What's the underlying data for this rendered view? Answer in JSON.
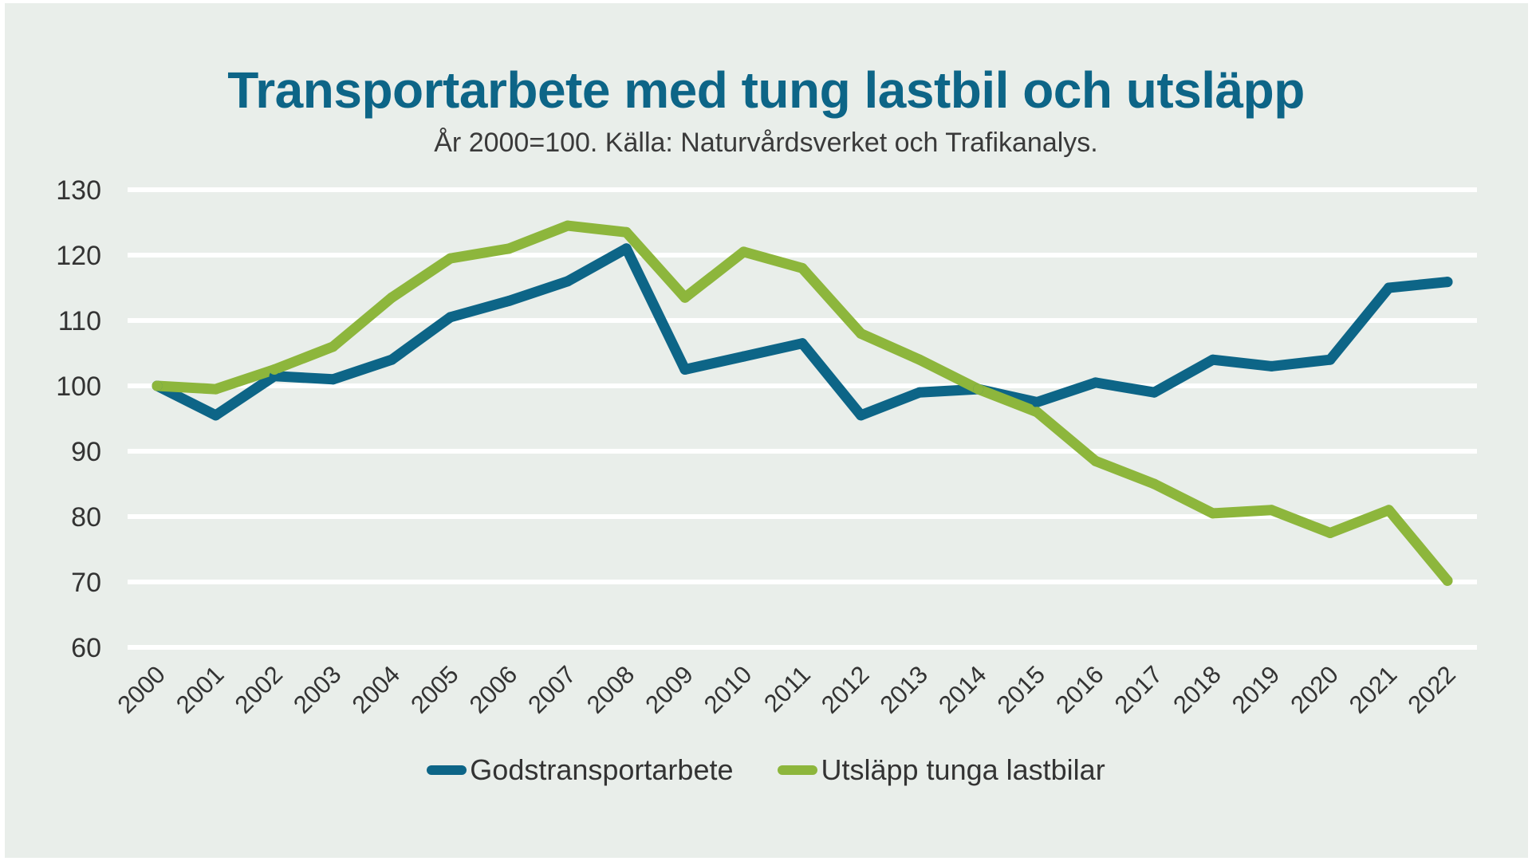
{
  "colors": {
    "godstransport": "#0d6587",
    "utslapp": "#8db63c",
    "grid": "#ffffff",
    "background": "#e9eeea"
  },
  "chart_data": {
    "type": "line",
    "title": "Transportarbete med tung lastbil och utsläpp",
    "subtitle": "År 2000=100. Källa: Naturvårdsverket och Trafikanalys.",
    "xlabel": "",
    "ylabel": "",
    "ylim": [
      60,
      130
    ],
    "yticks": [
      60,
      70,
      80,
      90,
      100,
      110,
      120,
      130
    ],
    "grid": true,
    "legend_position": "bottom",
    "categories": [
      "2000",
      "2001",
      "2002",
      "2003",
      "2004",
      "2005",
      "2006",
      "2007",
      "2008",
      "2009",
      "2010",
      "2011",
      "2012",
      "2013",
      "2014",
      "2015",
      "2016",
      "2017",
      "2018",
      "2019",
      "2020",
      "2021",
      "2022"
    ],
    "series": [
      {
        "name": "Godstransportarbete",
        "values": [
          100,
          95.5,
          101.5,
          101,
          104,
          110.5,
          113,
          116,
          121,
          102.5,
          104.5,
          106.5,
          95.5,
          99,
          99.5,
          97.5,
          100.5,
          99,
          104,
          103,
          104,
          115,
          115.9
        ]
      },
      {
        "name": "Utsläpp tunga lastbilar",
        "values": [
          100,
          99.5,
          102.5,
          106,
          113.5,
          119.5,
          121,
          124.5,
          123.5,
          113.5,
          120.5,
          118,
          108,
          104,
          99.5,
          96,
          88.5,
          85,
          80.5,
          81,
          77.5,
          81,
          70.2
        ]
      }
    ]
  }
}
